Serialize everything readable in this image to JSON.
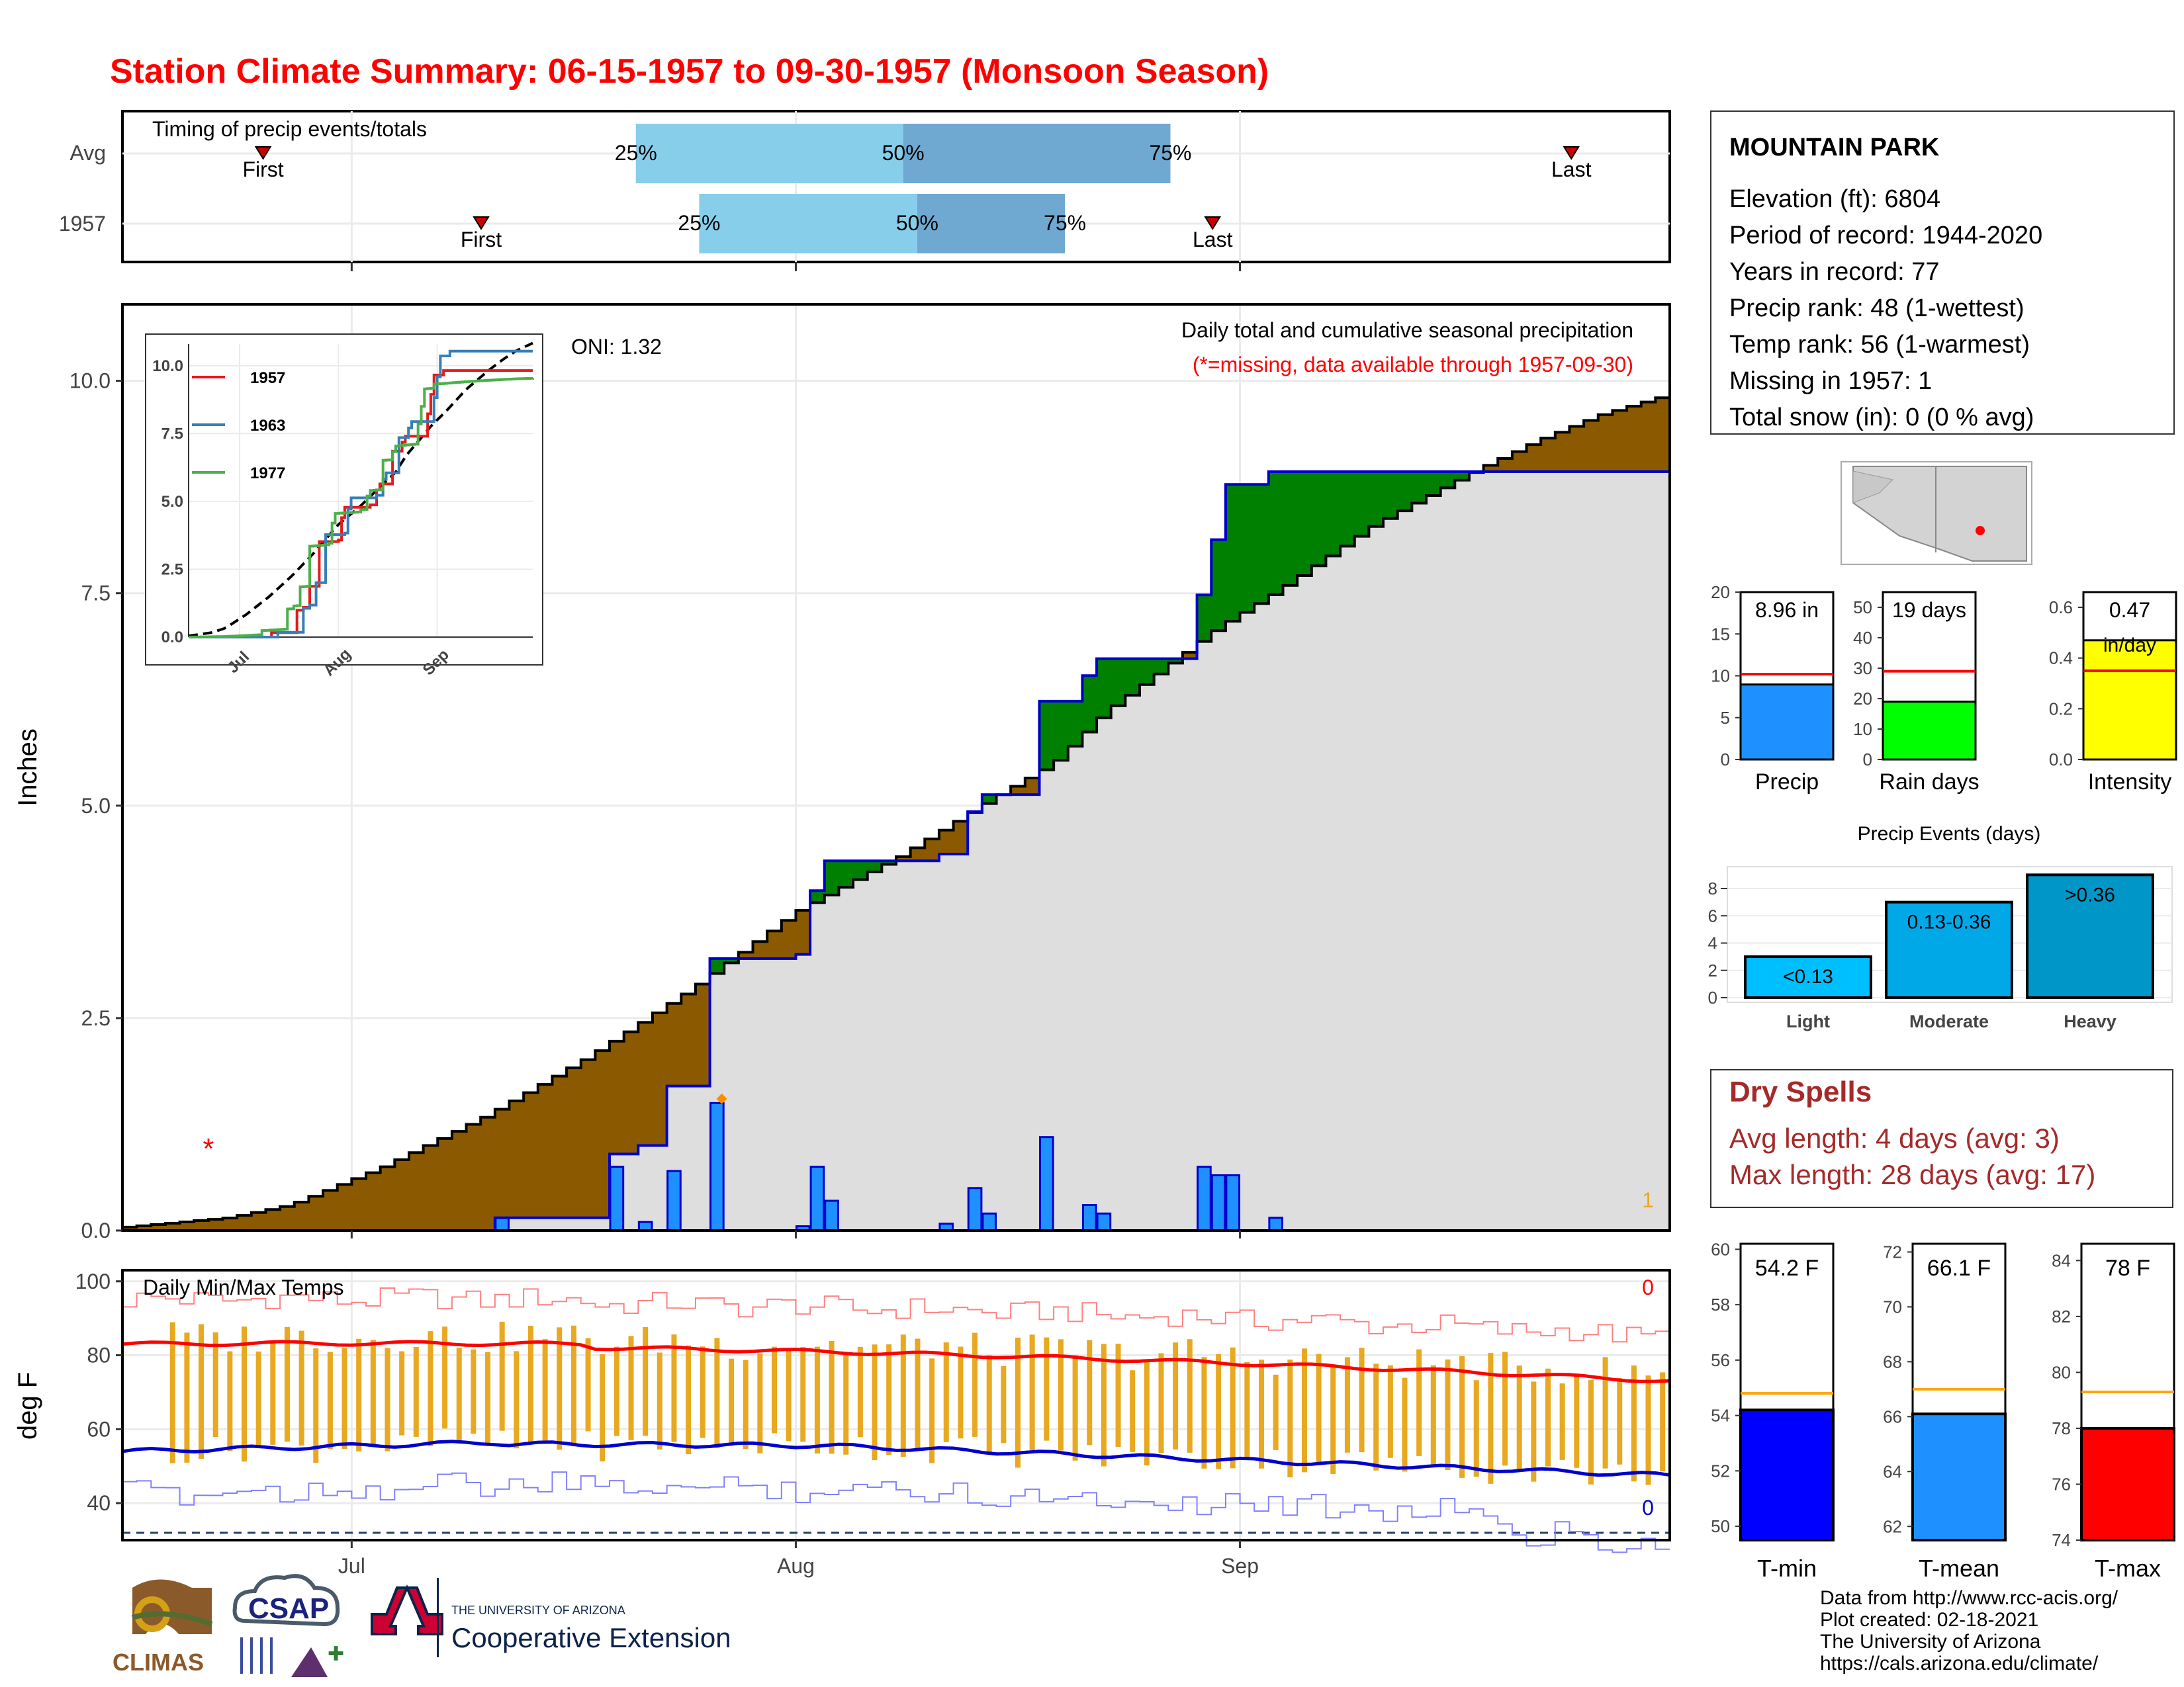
{
  "title": "Station Climate Summary: 06-15-1957 to 09-30-1957 (Monsoon Season)",
  "colors": {
    "title": "#ff0000",
    "brown": "#8b5a00",
    "green": "#008000",
    "grey_fill": "#dedede",
    "blue_line": "#0000cc",
    "bar_blue": "#1e90ff",
    "orange": "#e8a820",
    "light_blue": "#87ceeb",
    "mid_blue": "#6fa8d0",
    "dark_red": "#a52a2a"
  },
  "timing": {
    "label": "Timing of precip events/totals",
    "rows": [
      {
        "name": "Avg",
        "first_day": 20,
        "q25_day": 73,
        "q50_day": 111,
        "q75_day": 149,
        "last_day": 206
      },
      {
        "name": "1957",
        "first_day": 51,
        "q25_day": 82,
        "q50_day": 113,
        "q75_day": 134,
        "last_day": 155
      }
    ],
    "first_label": "First",
    "last_label": "Last",
    "q25_label": "25%",
    "q50_label": "50%",
    "q75_label": "75%"
  },
  "station": {
    "name": "MOUNTAIN PARK",
    "lines": [
      "Elevation (ft): 6804",
      "Period of record: 1944-2020",
      "Years in record: 77",
      "Precip rank: 48 (1-wettest)",
      "Temp rank: 56 (1-warmest)",
      "Missing in 1957: 1",
      "Total snow (in): 0 (0 % avg)"
    ]
  },
  "precip_panel": {
    "ylabel": "Inches",
    "oni": "ONI: 1.32",
    "title": "Daily total and cumulative seasonal precipitation",
    "subtitle": "(*=missing, data available through 1957-09-30)",
    "missing_count": "1",
    "months": [
      "Jul",
      "Aug",
      "Sep"
    ]
  },
  "inset": {
    "series": [
      "1957",
      "1963",
      "1977"
    ],
    "series_colors": [
      "#e41a1c",
      "#377eb8",
      "#4daf4a"
    ],
    "yticks": [
      "0.0",
      "2.5",
      "5.0",
      "7.5",
      "10.0"
    ],
    "xticks": [
      "Jul",
      "Aug",
      "Sep"
    ]
  },
  "temp_panel": {
    "ylabel": "deg F",
    "label": "Daily Min/Max Temps",
    "max_count": "0",
    "min_count": "0",
    "yticks": [
      "40",
      "60",
      "80",
      "100"
    ],
    "months": [
      "Jul",
      "Aug",
      "Sep"
    ]
  },
  "mini_bars": [
    {
      "label": "Precip",
      "value_text": "8.96 in",
      "value": 8.96,
      "avg": 10.2,
      "ymax": 20,
      "ticks": [
        "0",
        "5",
        "10",
        "15",
        "20"
      ],
      "color": "#1e90ff"
    },
    {
      "label": "Rain days",
      "value_text": "19 days",
      "value": 19,
      "avg": 29,
      "ymax": 55,
      "ticks": [
        "0",
        "10",
        "20",
        "30",
        "40",
        "50"
      ],
      "color": "#00ff00"
    },
    {
      "label": "Intensity",
      "value_text": "0.47",
      "value_text2": "in/day",
      "value": 0.47,
      "avg": 0.35,
      "ymax": 0.66,
      "ticks": [
        "0.0",
        "0.2",
        "0.4",
        "0.6"
      ],
      "color": "#ffff00"
    }
  ],
  "events": {
    "title": "Precip Events (days)",
    "bars": [
      {
        "label": "Light",
        "range": "<0.13",
        "value": 3,
        "color": "#00bfff"
      },
      {
        "label": "Moderate",
        "range": "0.13-0.36",
        "value": 7,
        "color": "#00a8e8"
      },
      {
        "label": "Heavy",
        "range": ">0.36",
        "value": 9,
        "color": "#0096c8"
      }
    ],
    "ticks": [
      "0",
      "2",
      "4",
      "6",
      "8"
    ]
  },
  "dry_spells": {
    "title": "Dry Spells",
    "lines": [
      "Avg length: 4 days (avg: 3)",
      "Max length: 28 days (avg: 17)"
    ]
  },
  "temp_bars": [
    {
      "label": "T-min",
      "value_text": "54.2 F",
      "value": 54.2,
      "avg": 54.8,
      "ymin": 49.5,
      "ymax": 60.2,
      "ticks": [
        "50",
        "52",
        "54",
        "56",
        "58",
        "60"
      ],
      "color": "#0000ff"
    },
    {
      "label": "T-mean",
      "value_text": "66.1 F",
      "value": 66.1,
      "avg": 67.0,
      "ymin": 61.5,
      "ymax": 72.3,
      "ticks": [
        "62",
        "64",
        "66",
        "68",
        "70",
        "72"
      ],
      "color": "#1e90ff"
    },
    {
      "label": "T-max",
      "value_text": "78 F",
      "value": 78,
      "avg": 79.3,
      "ymin": 74,
      "ymax": 84.6,
      "ticks": [
        "74",
        "76",
        "78",
        "80",
        "82",
        "84"
      ],
      "color": "#ff0000"
    }
  ],
  "footer": {
    "lines": [
      "Data from http://www.rcc-acis.org/",
      "Plot created: 02-18-2021",
      "The University of Arizona",
      "https://cals.arizona.edu/climate/"
    ],
    "logo_climas": "CLIMAS",
    "logo_csap": "CSAP",
    "ua_small": "THE UNIVERSITY OF ARIZONA",
    "ua_big": "Cooperative Extension"
  },
  "chart_data": {
    "type": "area",
    "title": "Daily total and cumulative seasonal precipitation",
    "ylabel": "Inches",
    "ylim": [
      0,
      10.9
    ],
    "yticks": [
      0,
      2.5,
      5,
      7.5,
      10
    ],
    "x_start": "1957-06-15",
    "x_end": "1957-09-30",
    "x_days": 108,
    "cum_avg_knots": [
      [
        0,
        0.04
      ],
      [
        10,
        0.15
      ],
      [
        16,
        0.3
      ],
      [
        25,
        0.75
      ],
      [
        35,
        1.35
      ],
      [
        45,
        2.05
      ],
      [
        55,
        2.85
      ],
      [
        65,
        3.75
      ],
      [
        75,
        4.4
      ],
      [
        85,
        5.15
      ],
      [
        90,
        5.5
      ],
      [
        95,
        6.1
      ],
      [
        100,
        6.55
      ],
      [
        106,
        7.1
      ],
      [
        112,
        7.55
      ],
      [
        121,
        8.3
      ],
      [
        131,
        8.95
      ],
      [
        137,
        9.3
      ],
      [
        143,
        9.6
      ],
      [
        150,
        9.85
      ]
    ],
    "daily_1957": [
      [
        26,
        0.15
      ],
      [
        34,
        0.75
      ],
      [
        36,
        0.1
      ],
      [
        38,
        0.7
      ],
      [
        41,
        1.5
      ],
      [
        47,
        0.05
      ],
      [
        48,
        0.75
      ],
      [
        49,
        0.35
      ],
      [
        57,
        0.08
      ],
      [
        59,
        0.5
      ],
      [
        60,
        0.2
      ],
      [
        64,
        1.1
      ],
      [
        67,
        0.3
      ],
      [
        68,
        0.2
      ],
      [
        75,
        0.75
      ],
      [
        76,
        0.65
      ],
      [
        77,
        0.65
      ],
      [
        80,
        0.15
      ]
    ],
    "orange_marker_day": 41,
    "missing_day": 6,
    "temps": {
      "avg_max_start": 83,
      "avg_max_end": 73,
      "avg_min_start": 54,
      "avg_min_end": 47
    }
  }
}
